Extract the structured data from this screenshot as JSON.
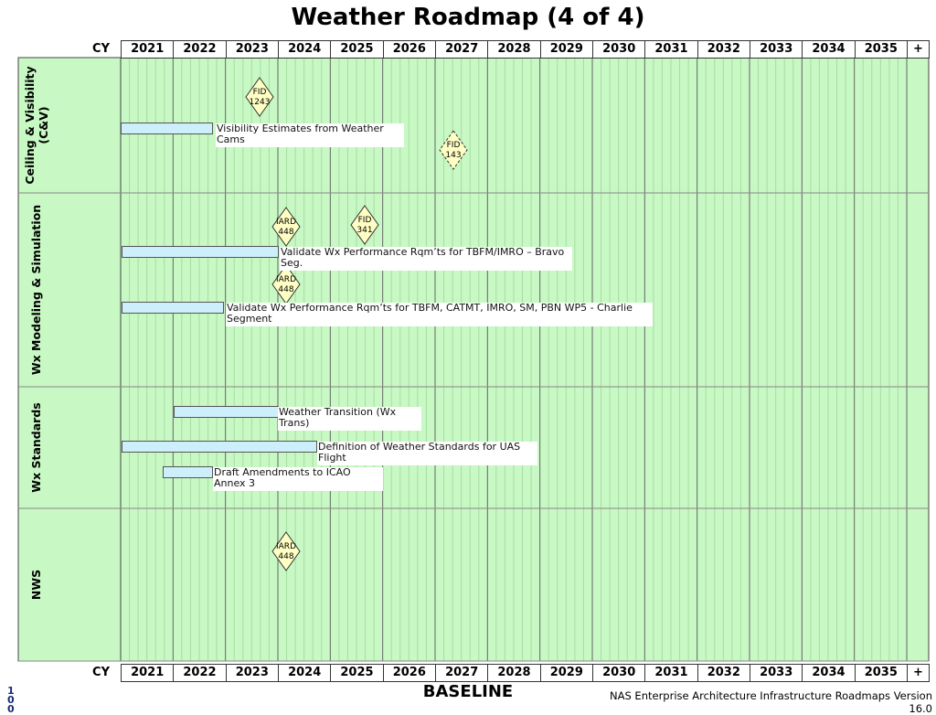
{
  "title": "Weather Roadmap (4 of 4)",
  "header": {
    "cy": "CY",
    "years": [
      "2021",
      "2022",
      "2023",
      "2024",
      "2025",
      "2026",
      "2027",
      "2028",
      "2029",
      "2030",
      "2031",
      "2032",
      "2033",
      "2034",
      "2035"
    ],
    "plus": "+"
  },
  "lanes": [
    {
      "label": [
        "Ceiling & Visibility",
        "(C&V)"
      ],
      "bars": [
        {
          "label": "Visibility Estimates from Weather Cams"
        }
      ],
      "milestones": [
        {
          "lines": [
            "FID",
            "1243"
          ]
        },
        {
          "lines": [
            "FID",
            "143"
          ]
        }
      ]
    },
    {
      "label": [
        "Wx Modeling & Simulation"
      ],
      "bars": [
        {
          "label": "Validate Wx Performance Rqm’ts for TBFM/IMRO – Bravo Seg."
        },
        {
          "label": "Validate Wx Performance Rqm’ts for TBFM, CATMT, IMRO, SM, PBN WP5 - Charlie Segment"
        }
      ],
      "milestones": [
        {
          "lines": [
            "IARD",
            "448"
          ]
        },
        {
          "lines": [
            "FID",
            "341"
          ]
        },
        {
          "lines": [
            "IARD",
            "448"
          ]
        }
      ]
    },
    {
      "label": [
        "Wx Standards"
      ],
      "bars": [
        {
          "label": "Weather Transition (Wx Trans)"
        },
        {
          "label": "Definition of Weather Standards for UAS Flight"
        },
        {
          "label": "Draft Amendments to ICAO Annex 3"
        }
      ],
      "milestones": []
    },
    {
      "label": [
        "NWS"
      ],
      "bars": [],
      "milestones": [
        {
          "lines": [
            "IARD",
            "448"
          ]
        }
      ]
    }
  ],
  "footer": {
    "page": "100",
    "baseline": "BASELINE",
    "version": "NAS Enterprise Architecture Infrastructure Roadmaps Version 16.0"
  }
}
